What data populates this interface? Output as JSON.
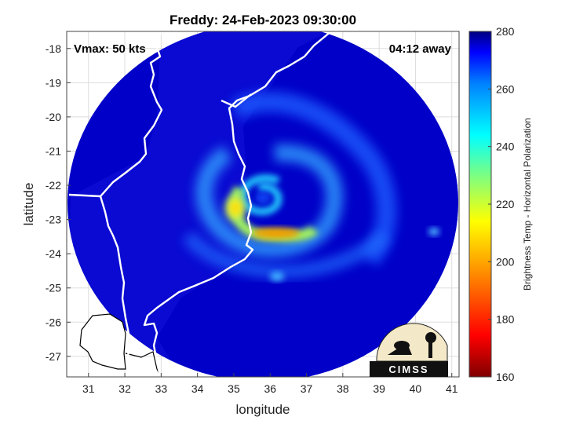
{
  "chart_data": {
    "type": "heatmap",
    "title": "Freddy: 24-Feb-2023 09:30:00",
    "xlabel": "longitude",
    "ylabel": "latitude",
    "xlim": [
      30.4,
      41.2
    ],
    "ylim": [
      -27.6,
      -17.5
    ],
    "x_ticks": [
      "31",
      "32",
      "33",
      "34",
      "35",
      "36",
      "37",
      "38",
      "39",
      "40",
      "41"
    ],
    "y_ticks": [
      "-18",
      "-19",
      "-20",
      "-21",
      "-22",
      "-23",
      "-24",
      "-25",
      "-26",
      "-27"
    ],
    "grid": true,
    "annotations": {
      "vmax": "Vmax: 50 kts",
      "time_away": "04:12 away"
    },
    "storm_center": {
      "lon": 35.8,
      "lat": -22.6
    },
    "swath": {
      "center_lon": 35.8,
      "center_lat": -22.6,
      "radius_deg": 5.4
    },
    "colorbar": {
      "label": "Brightness Temp - Horizontal Polarization",
      "range": [
        160,
        280
      ],
      "ticks": [
        "160",
        "180",
        "200",
        "220",
        "240",
        "260",
        "280"
      ],
      "colormap": "jet"
    },
    "values_kelvin": {
      "background": 275,
      "spiral_band": 240,
      "inner_core": 215,
      "warmest_spot": 200
    },
    "logo": {
      "text": "CIMSS"
    },
    "colors": {
      "ocean_dark_blue": "#00007f",
      "band_cyan": "#1fbfff",
      "core_yellow": "#f8f800",
      "coast_line": "#ffffff",
      "outside_land_outline": "#000000"
    }
  }
}
